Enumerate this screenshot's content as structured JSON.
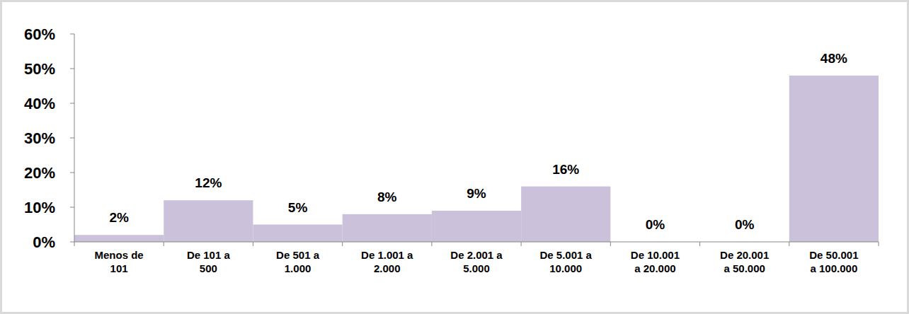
{
  "chart_data": {
    "type": "bar",
    "categories": [
      "Menos de 101",
      "De 101 a 500",
      "De 501 a 1.000",
      "De 1.001 a 2.000",
      "De 2.001 a 5.000",
      "De 5.001 a 10.000",
      "De 10.001 a 20.000",
      "De 20.001 a 50.000",
      "De 50.001 a 100.000"
    ],
    "values": [
      2,
      12,
      5,
      8,
      9,
      16,
      0,
      0,
      48
    ],
    "value_labels": [
      "2%",
      "12%",
      "5%",
      "8%",
      "9%",
      "16%",
      "0%",
      "0%",
      "48%"
    ],
    "data_labels": true,
    "color": "#ccc1da",
    "ylim": [
      0,
      60
    ],
    "yticks": [
      {
        "value": 0,
        "label": "0%"
      },
      {
        "value": 10,
        "label": "10%"
      },
      {
        "value": 20,
        "label": "20%"
      },
      {
        "value": 30,
        "label": "30%"
      },
      {
        "value": 40,
        "label": "40%"
      },
      {
        "value": 50,
        "label": "50%"
      },
      {
        "value": 60,
        "label": "60%"
      }
    ],
    "grid": false
  }
}
